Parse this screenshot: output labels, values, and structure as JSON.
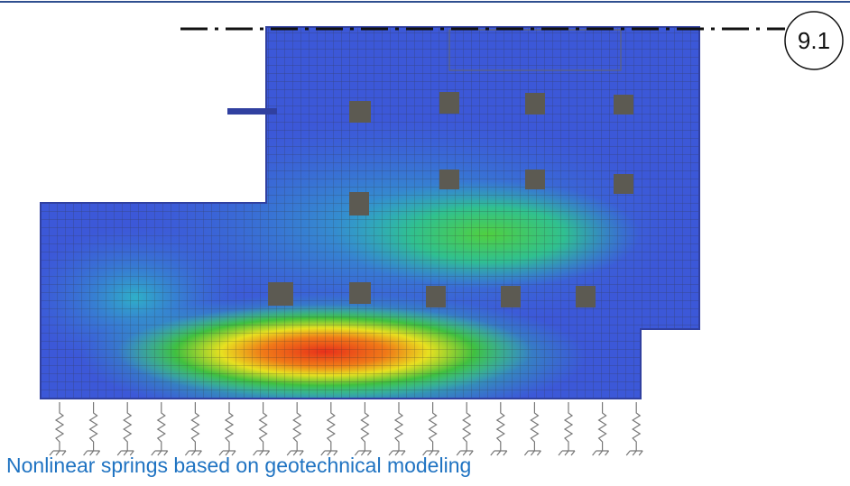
{
  "label": "9.1",
  "caption": "Nonlinear springs based on geotechnical modeling"
}
